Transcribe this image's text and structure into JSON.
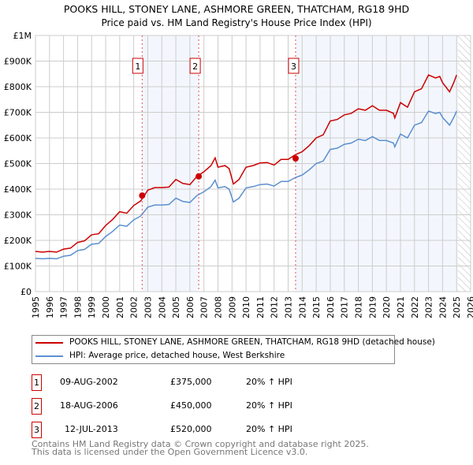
{
  "chart_data": {
    "type": "line",
    "title": "POOKS HILL, STONEY LANE, ASHMORE GREEN, THATCHAM, RG18 9HD",
    "subtitle": "Price paid vs. HM Land Registry's House Price Index (HPI)",
    "xlim": [
      1995,
      2026
    ],
    "ylim": [
      0,
      1000000
    ],
    "x_ticks": [
      "1995",
      "1996",
      "1997",
      "1998",
      "1999",
      "2000",
      "2001",
      "2002",
      "2003",
      "2004",
      "2005",
      "2006",
      "2007",
      "2008",
      "2009",
      "2010",
      "2011",
      "2012",
      "2013",
      "2014",
      "2015",
      "2016",
      "2017",
      "2018",
      "2019",
      "2020",
      "2021",
      "2022",
      "2023",
      "2024",
      "2025",
      "2026"
    ],
    "y_ticks": [
      {
        "v": 0,
        "label": "£0"
      },
      {
        "v": 100000,
        "label": "£100K"
      },
      {
        "v": 200000,
        "label": "£200K"
      },
      {
        "v": 300000,
        "label": "£300K"
      },
      {
        "v": 400000,
        "label": "£400K"
      },
      {
        "v": 500000,
        "label": "£500K"
      },
      {
        "v": 600000,
        "label": "£600K"
      },
      {
        "v": 700000,
        "label": "£700K"
      },
      {
        "v": 800000,
        "label": "£800K"
      },
      {
        "v": 900000,
        "label": "£900K"
      },
      {
        "v": 1000000,
        "label": "£1M"
      }
    ],
    "grid": true,
    "forecast_start": 2025.1,
    "x": [
      1995,
      1995.5,
      1996,
      1996.5,
      1997,
      1997.5,
      1998,
      1998.5,
      1999,
      1999.5,
      2000,
      2000.5,
      2001,
      2001.5,
      2002,
      2002.5,
      2003,
      2003.5,
      2004,
      2004.5,
      2005,
      2005.5,
      2006,
      2006.5,
      2007,
      2007.5,
      2007.8,
      2008,
      2008.5,
      2008.8,
      2009.1,
      2009.5,
      2010,
      2010.5,
      2011,
      2011.5,
      2012,
      2012.5,
      2013,
      2013.5,
      2014,
      2014.5,
      2015,
      2015.5,
      2016,
      2016.5,
      2017,
      2017.5,
      2018,
      2018.5,
      2019,
      2019.5,
      2020,
      2020.5,
      2020.6,
      2021,
      2021.5,
      2022,
      2022.5,
      2023,
      2023.5,
      2023.8,
      2024,
      2024.5,
      2024.8,
      2025
    ],
    "series": [
      {
        "name": "POOKS HILL, STONEY LANE, ASHMORE GREEN, THATCHAM, RG18 9HD (detached house)",
        "color": "#cc0000",
        "values": [
          157,
          154,
          157,
          154,
          166,
          170,
          192,
          198,
          222,
          226,
          258,
          282,
          312,
          306,
          336,
          354,
          396,
          406,
          406,
          408,
          438,
          422,
          418,
          450,
          468,
          492,
          522,
          486,
          492,
          480,
          420,
          438,
          486,
          492,
          502,
          504,
          494,
          516,
          516,
          534,
          546,
          570,
          600,
          612,
          666,
          672,
          690,
          696,
          714,
          708,
          726,
          708,
          708,
          696,
          678,
          738,
          720,
          780,
          792,
          846,
          834,
          840,
          816,
          780,
          816,
          846
        ]
      },
      {
        "name": "HPI: Average price, detached house, West Berkshire",
        "color": "#5b8fd0",
        "values": [
          130,
          128,
          130,
          128,
          138,
          142,
          160,
          165,
          185,
          188,
          215,
          235,
          260,
          255,
          280,
          295,
          330,
          338,
          338,
          340,
          365,
          352,
          348,
          375,
          390,
          410,
          435,
          405,
          410,
          400,
          350,
          365,
          405,
          410,
          418,
          420,
          412,
          430,
          430,
          445,
          455,
          475,
          500,
          510,
          555,
          560,
          575,
          580,
          595,
          590,
          605,
          590,
          590,
          580,
          565,
          615,
          600,
          650,
          660,
          705,
          695,
          700,
          680,
          650,
          680,
          705
        ]
      }
    ],
    "value_unit": "thousands GBP",
    "sales": [
      {
        "id": "1",
        "x": 2002.6,
        "value": 375000
      },
      {
        "id": "2",
        "x": 2006.63,
        "value": 450000
      },
      {
        "id": "3",
        "x": 2013.53,
        "value": 520000
      }
    ]
  },
  "legend": {
    "property": "POOKS HILL, STONEY LANE, ASHMORE GREEN, THATCHAM, RG18 9HD (detached house)",
    "hpi": "HPI: Average price, detached house, West Berkshire"
  },
  "transactions": [
    {
      "num": "1",
      "date": "09-AUG-2002",
      "price": "£375,000",
      "hpi": "20% ↑ HPI"
    },
    {
      "num": "2",
      "date": "18-AUG-2006",
      "price": "£450,000",
      "hpi": "20% ↑ HPI"
    },
    {
      "num": "3",
      "date": "12-JUL-2013",
      "price": "£520,000",
      "hpi": "20% ↑ HPI"
    }
  ],
  "footer": {
    "line1": "Contains HM Land Registry data © Crown copyright and database right 2025.",
    "line2": "This data is licensed under the Open Government Licence v3.0."
  }
}
